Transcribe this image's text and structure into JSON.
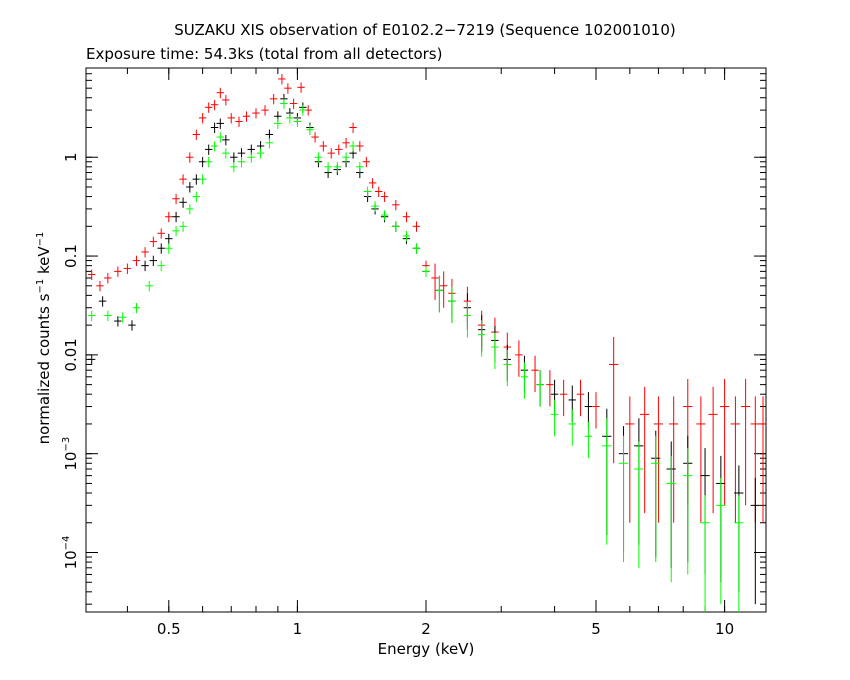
{
  "chart_data": {
    "type": "scatter",
    "title": "SUZAKU XIS observation of E0102.2−7219 (Sequence 102001010)",
    "subtitle": "Exposure time: 54.3ks (total from all detectors)",
    "xlabel": "Energy (keV)",
    "ylabel": "normalized counts s",
    "ylabel_sup1": "−1",
    "ylabel_mid": " keV",
    "ylabel_sup2": "−1",
    "x_scale": "log",
    "y_scale": "log",
    "xlim": [
      0.32,
      12.5
    ],
    "ylim": [
      2.5e-05,
      8
    ],
    "x_ticks": [
      {
        "value": 0.5,
        "label": "0.5"
      },
      {
        "value": 1,
        "label": "1"
      },
      {
        "value": 2,
        "label": "2"
      },
      {
        "value": 5,
        "label": "5"
      },
      {
        "value": 10,
        "label": "10"
      }
    ],
    "y_ticks": [
      {
        "value": 1,
        "label": "1",
        "exp": ""
      },
      {
        "value": 0.1,
        "label": "0.1",
        "exp": ""
      },
      {
        "value": 0.01,
        "label": "0.01",
        "exp": ""
      },
      {
        "value": 0.001,
        "label": "10",
        "exp": "−3"
      },
      {
        "value": 0.0001,
        "label": "10",
        "exp": "−4"
      }
    ],
    "series": [
      {
        "color": "#ff0000",
        "points": [
          [
            0.33,
            0.065
          ],
          [
            0.345,
            0.05
          ],
          [
            0.36,
            0.06
          ],
          [
            0.38,
            0.07
          ],
          [
            0.4,
            0.075
          ],
          [
            0.42,
            0.09
          ],
          [
            0.44,
            0.11
          ],
          [
            0.46,
            0.14
          ],
          [
            0.48,
            0.17
          ],
          [
            0.5,
            0.25
          ],
          [
            0.52,
            0.38
          ],
          [
            0.54,
            0.6
          ],
          [
            0.56,
            1.0
          ],
          [
            0.58,
            1.7
          ],
          [
            0.6,
            2.5
          ],
          [
            0.62,
            3.2
          ],
          [
            0.64,
            3.4
          ],
          [
            0.66,
            4.5
          ],
          [
            0.68,
            3.8
          ],
          [
            0.7,
            2.5
          ],
          [
            0.73,
            2.3
          ],
          [
            0.76,
            2.6
          ],
          [
            0.8,
            2.8
          ],
          [
            0.84,
            3.0
          ],
          [
            0.88,
            3.9
          ],
          [
            0.92,
            6.2
          ],
          [
            0.95,
            5.0
          ],
          [
            0.98,
            3.5
          ],
          [
            1.02,
            5.1
          ],
          [
            1.06,
            3.0
          ],
          [
            1.1,
            1.6
          ],
          [
            1.15,
            1.3
          ],
          [
            1.2,
            1.1
          ],
          [
            1.25,
            1.2
          ],
          [
            1.3,
            1.4
          ],
          [
            1.35,
            2.0
          ],
          [
            1.4,
            1.3
          ],
          [
            1.45,
            0.9
          ],
          [
            1.5,
            0.55
          ],
          [
            1.55,
            0.45
          ],
          [
            1.6,
            0.4
          ],
          [
            1.7,
            0.33
          ],
          [
            1.8,
            0.25
          ],
          [
            1.9,
            0.2
          ],
          [
            2.0,
            0.08
          ],
          [
            2.1,
            0.06
          ],
          [
            2.2,
            0.05
          ],
          [
            2.3,
            0.042
          ],
          [
            2.5,
            0.035
          ],
          [
            2.7,
            0.02
          ],
          [
            2.9,
            0.017
          ],
          [
            3.1,
            0.012
          ],
          [
            3.3,
            0.01
          ],
          [
            3.6,
            0.007
          ],
          [
            3.9,
            0.005
          ],
          [
            4.2,
            0.004
          ],
          [
            4.6,
            0.004
          ],
          [
            5.0,
            0.003
          ],
          [
            5.5,
            0.008
          ],
          [
            6.0,
            0.002
          ],
          [
            6.5,
            0.0025
          ],
          [
            7.0,
            0.002
          ],
          [
            7.6,
            0.002
          ],
          [
            8.2,
            0.003
          ],
          [
            8.8,
            0.002
          ],
          [
            9.4,
            0.0025
          ],
          [
            10.0,
            0.003
          ],
          [
            10.6,
            0.002
          ],
          [
            11.2,
            0.003
          ],
          [
            11.8,
            0.002
          ],
          [
            12.3,
            0.002
          ]
        ]
      },
      {
        "color": "#000000",
        "points": [
          [
            0.33,
            0.009
          ],
          [
            0.35,
            0.035
          ],
          [
            0.38,
            0.022
          ],
          [
            0.41,
            0.02
          ],
          [
            0.44,
            0.08
          ],
          [
            0.46,
            0.09
          ],
          [
            0.48,
            0.12
          ],
          [
            0.5,
            0.15
          ],
          [
            0.52,
            0.25
          ],
          [
            0.54,
            0.35
          ],
          [
            0.56,
            0.5
          ],
          [
            0.58,
            0.6
          ],
          [
            0.6,
            0.9
          ],
          [
            0.62,
            1.2
          ],
          [
            0.64,
            2.0
          ],
          [
            0.66,
            2.2
          ],
          [
            0.68,
            1.5
          ],
          [
            0.71,
            1.0
          ],
          [
            0.74,
            1.1
          ],
          [
            0.78,
            1.2
          ],
          [
            0.82,
            1.3
          ],
          [
            0.86,
            1.7
          ],
          [
            0.9,
            2.6
          ],
          [
            0.93,
            3.9
          ],
          [
            0.96,
            2.8
          ],
          [
            1.0,
            2.5
          ],
          [
            1.03,
            3.2
          ],
          [
            1.07,
            2.0
          ],
          [
            1.12,
            0.9
          ],
          [
            1.18,
            0.7
          ],
          [
            1.24,
            0.75
          ],
          [
            1.3,
            0.9
          ],
          [
            1.35,
            1.1
          ],
          [
            1.4,
            0.7
          ],
          [
            1.46,
            0.4
          ],
          [
            1.52,
            0.3
          ],
          [
            1.6,
            0.25
          ],
          [
            1.7,
            0.2
          ],
          [
            1.8,
            0.15
          ],
          [
            1.9,
            0.12
          ],
          [
            2.0,
            0.07
          ],
          [
            2.15,
            0.045
          ],
          [
            2.3,
            0.035
          ],
          [
            2.5,
            0.03
          ],
          [
            2.7,
            0.018
          ],
          [
            2.9,
            0.014
          ],
          [
            3.1,
            0.009
          ],
          [
            3.4,
            0.007
          ],
          [
            3.7,
            0.005
          ],
          [
            4.0,
            0.004
          ],
          [
            4.4,
            0.0035
          ],
          [
            4.8,
            0.003
          ],
          [
            5.3,
            0.0015
          ],
          [
            5.8,
            0.001
          ],
          [
            6.3,
            0.0012
          ],
          [
            6.9,
            0.0009
          ],
          [
            7.5,
            0.0007
          ],
          [
            8.2,
            0.0008
          ],
          [
            9.0,
            0.0006
          ],
          [
            9.8,
            0.0005
          ],
          [
            10.8,
            0.0004
          ],
          [
            11.8,
            0.0003
          ]
        ]
      },
      {
        "color": "#00ff00",
        "points": [
          [
            0.33,
            0.025
          ],
          [
            0.36,
            0.025
          ],
          [
            0.39,
            0.024
          ],
          [
            0.42,
            0.03
          ],
          [
            0.45,
            0.05
          ],
          [
            0.48,
            0.08
          ],
          [
            0.5,
            0.12
          ],
          [
            0.52,
            0.18
          ],
          [
            0.54,
            0.2
          ],
          [
            0.56,
            0.3
          ],
          [
            0.58,
            0.4
          ],
          [
            0.6,
            0.6
          ],
          [
            0.62,
            0.9
          ],
          [
            0.64,
            1.3
          ],
          [
            0.66,
            1.6
          ],
          [
            0.68,
            1.1
          ],
          [
            0.71,
            0.8
          ],
          [
            0.74,
            0.9
          ],
          [
            0.78,
            1.0
          ],
          [
            0.82,
            1.1
          ],
          [
            0.86,
            1.4
          ],
          [
            0.9,
            2.2
          ],
          [
            0.93,
            3.5
          ],
          [
            0.96,
            2.5
          ],
          [
            1.0,
            2.3
          ],
          [
            1.03,
            3.0
          ],
          [
            1.07,
            1.9
          ],
          [
            1.12,
            1.0
          ],
          [
            1.18,
            0.8
          ],
          [
            1.24,
            0.8
          ],
          [
            1.3,
            1.0
          ],
          [
            1.35,
            1.3
          ],
          [
            1.4,
            0.8
          ],
          [
            1.46,
            0.45
          ],
          [
            1.52,
            0.32
          ],
          [
            1.6,
            0.26
          ],
          [
            1.7,
            0.2
          ],
          [
            1.8,
            0.16
          ],
          [
            1.9,
            0.12
          ],
          [
            2.0,
            0.07
          ],
          [
            2.15,
            0.045
          ],
          [
            2.3,
            0.035
          ],
          [
            2.5,
            0.025
          ],
          [
            2.7,
            0.016
          ],
          [
            2.9,
            0.012
          ],
          [
            3.1,
            0.008
          ],
          [
            3.4,
            0.006
          ],
          [
            3.7,
            0.005
          ],
          [
            4.0,
            0.0025
          ],
          [
            4.4,
            0.002
          ],
          [
            4.8,
            0.0015
          ],
          [
            5.3,
            0.0012
          ],
          [
            5.8,
            0.0008
          ],
          [
            6.3,
            0.0007
          ],
          [
            6.9,
            0.0008
          ],
          [
            7.5,
            0.0005
          ],
          [
            8.2,
            0.0006
          ],
          [
            9.0,
            0.0002
          ],
          [
            9.8,
            0.0003
          ],
          [
            10.8,
            0.0002
          ]
        ]
      }
    ]
  }
}
